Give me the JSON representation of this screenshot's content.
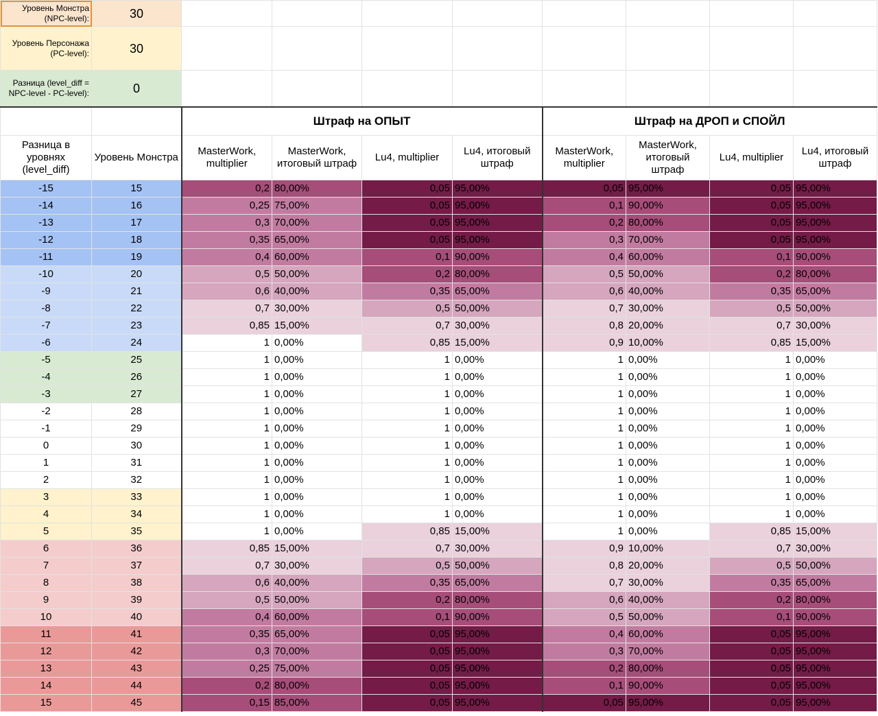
{
  "inputs": [
    {
      "label": "Уровень Монстра (NPC-level):",
      "value": 30,
      "color": "#fce5cd"
    },
    {
      "label": "Уровень Персонажа (PC-level):",
      "value": 30,
      "color": "#fff2cc"
    },
    {
      "label": "Разница (level_diff = NPC-level - PC-level):",
      "value": 0,
      "color": "#d9ead3"
    }
  ],
  "table": {
    "group_headers": [
      "Штраф на ОПЫТ",
      "Штраф на ДРОП и СПОЙЛ"
    ],
    "columns": [
      "Разница в уровнях (level_diff)",
      "Уровень Монстра",
      "MasterWork, multiplier",
      "MasterWork, итоговый штраф",
      "Lu4, multiplier",
      "Lu4, итоговый штраф",
      "MasterWork, multiplier",
      "MasterWork, итоговый штраф",
      "Lu4, multiplier",
      "Lu4, итоговый штраф"
    ],
    "rows": [
      [
        -15,
        15,
        "0,2",
        "80,00%",
        "0,05",
        "95,00%",
        "0,05",
        "95,00%",
        "0,05",
        "95,00%"
      ],
      [
        -14,
        16,
        "0,25",
        "75,00%",
        "0,05",
        "95,00%",
        "0,1",
        "90,00%",
        "0,05",
        "95,00%"
      ],
      [
        -13,
        17,
        "0,3",
        "70,00%",
        "0,05",
        "95,00%",
        "0,2",
        "80,00%",
        "0,05",
        "95,00%"
      ],
      [
        -12,
        18,
        "0,35",
        "65,00%",
        "0,05",
        "95,00%",
        "0,3",
        "70,00%",
        "0,05",
        "95,00%"
      ],
      [
        -11,
        19,
        "0,4",
        "60,00%",
        "0,1",
        "90,00%",
        "0,4",
        "60,00%",
        "0,1",
        "90,00%"
      ],
      [
        -10,
        20,
        "0,5",
        "50,00%",
        "0,2",
        "80,00%",
        "0,5",
        "50,00%",
        "0,2",
        "80,00%"
      ],
      [
        -9,
        21,
        "0,6",
        "40,00%",
        "0,35",
        "65,00%",
        "0,6",
        "40,00%",
        "0,35",
        "65,00%"
      ],
      [
        -8,
        22,
        "0,7",
        "30,00%",
        "0,5",
        "50,00%",
        "0,7",
        "30,00%",
        "0,5",
        "50,00%"
      ],
      [
        -7,
        23,
        "0,85",
        "15,00%",
        "0,7",
        "30,00%",
        "0,8",
        "20,00%",
        "0,7",
        "30,00%"
      ],
      [
        -6,
        24,
        1,
        "0,00%",
        "0,85",
        "15,00%",
        "0,9",
        "10,00%",
        "0,85",
        "15,00%"
      ],
      [
        -5,
        25,
        1,
        "0,00%",
        1,
        "0,00%",
        1,
        "0,00%",
        1,
        "0,00%"
      ],
      [
        -4,
        26,
        1,
        "0,00%",
        1,
        "0,00%",
        1,
        "0,00%",
        1,
        "0,00%"
      ],
      [
        -3,
        27,
        1,
        "0,00%",
        1,
        "0,00%",
        1,
        "0,00%",
        1,
        "0,00%"
      ],
      [
        -2,
        28,
        1,
        "0,00%",
        1,
        "0,00%",
        1,
        "0,00%",
        1,
        "0,00%"
      ],
      [
        -1,
        29,
        1,
        "0,00%",
        1,
        "0,00%",
        1,
        "0,00%",
        1,
        "0,00%"
      ],
      [
        0,
        30,
        1,
        "0,00%",
        1,
        "0,00%",
        1,
        "0,00%",
        1,
        "0,00%"
      ],
      [
        1,
        31,
        1,
        "0,00%",
        1,
        "0,00%",
        1,
        "0,00%",
        1,
        "0,00%"
      ],
      [
        2,
        32,
        1,
        "0,00%",
        1,
        "0,00%",
        1,
        "0,00%",
        1,
        "0,00%"
      ],
      [
        3,
        33,
        1,
        "0,00%",
        1,
        "0,00%",
        1,
        "0,00%",
        1,
        "0,00%"
      ],
      [
        4,
        34,
        1,
        "0,00%",
        1,
        "0,00%",
        1,
        "0,00%",
        1,
        "0,00%"
      ],
      [
        5,
        35,
        1,
        "0,00%",
        "0,85",
        "15,00%",
        1,
        "0,00%",
        "0,85",
        "15,00%"
      ],
      [
        6,
        36,
        "0,85",
        "15,00%",
        "0,7",
        "30,00%",
        "0,9",
        "10,00%",
        "0,7",
        "30,00%"
      ],
      [
        7,
        37,
        "0,7",
        "30,00%",
        "0,5",
        "50,00%",
        "0,8",
        "20,00%",
        "0,5",
        "50,00%"
      ],
      [
        8,
        38,
        "0,6",
        "40,00%",
        "0,35",
        "65,00%",
        "0,7",
        "30,00%",
        "0,35",
        "65,00%"
      ],
      [
        9,
        39,
        "0,5",
        "50,00%",
        "0,2",
        "80,00%",
        "0,6",
        "40,00%",
        "0,2",
        "80,00%"
      ],
      [
        10,
        40,
        "0,4",
        "60,00%",
        "0,1",
        "90,00%",
        "0,5",
        "50,00%",
        "0,1",
        "90,00%"
      ],
      [
        11,
        41,
        "0,35",
        "65,00%",
        "0,05",
        "95,00%",
        "0,4",
        "60,00%",
        "0,05",
        "95,00%"
      ],
      [
        12,
        42,
        "0,3",
        "70,00%",
        "0,05",
        "95,00%",
        "0,3",
        "70,00%",
        "0,05",
        "95,00%"
      ],
      [
        13,
        43,
        "0,25",
        "75,00%",
        "0,05",
        "95,00%",
        "0,2",
        "80,00%",
        "0,05",
        "95,00%"
      ],
      [
        14,
        44,
        "0,2",
        "80,00%",
        "0,05",
        "95,00%",
        "0,1",
        "90,00%",
        "0,05",
        "95,00%"
      ],
      [
        15,
        45,
        "0,15",
        "85,00%",
        "0,05",
        "95,00%",
        "0,05",
        "95,00%",
        "0,05",
        "95,00%"
      ]
    ],
    "row_colors": [
      "#a4c2f4",
      "#a4c2f4",
      "#a4c2f4",
      "#a4c2f4",
      "#a4c2f4",
      "#c9daf8",
      "#c9daf8",
      "#c9daf8",
      "#c9daf8",
      "#c9daf8",
      "#d9ead3",
      "#d9ead3",
      "#d9ead3",
      "#ffffff",
      "#ffffff",
      "#ffffff",
      "#ffffff",
      "#ffffff",
      "#fff2cc",
      "#fff2cc",
      "#fff2cc",
      "#f4cccc",
      "#f4cccc",
      "#f4cccc",
      "#f4cccc",
      "#f4cccc",
      "#ea9999",
      "#ea9999",
      "#ea9999",
      "#ea9999",
      "#ea9999"
    ]
  }
}
